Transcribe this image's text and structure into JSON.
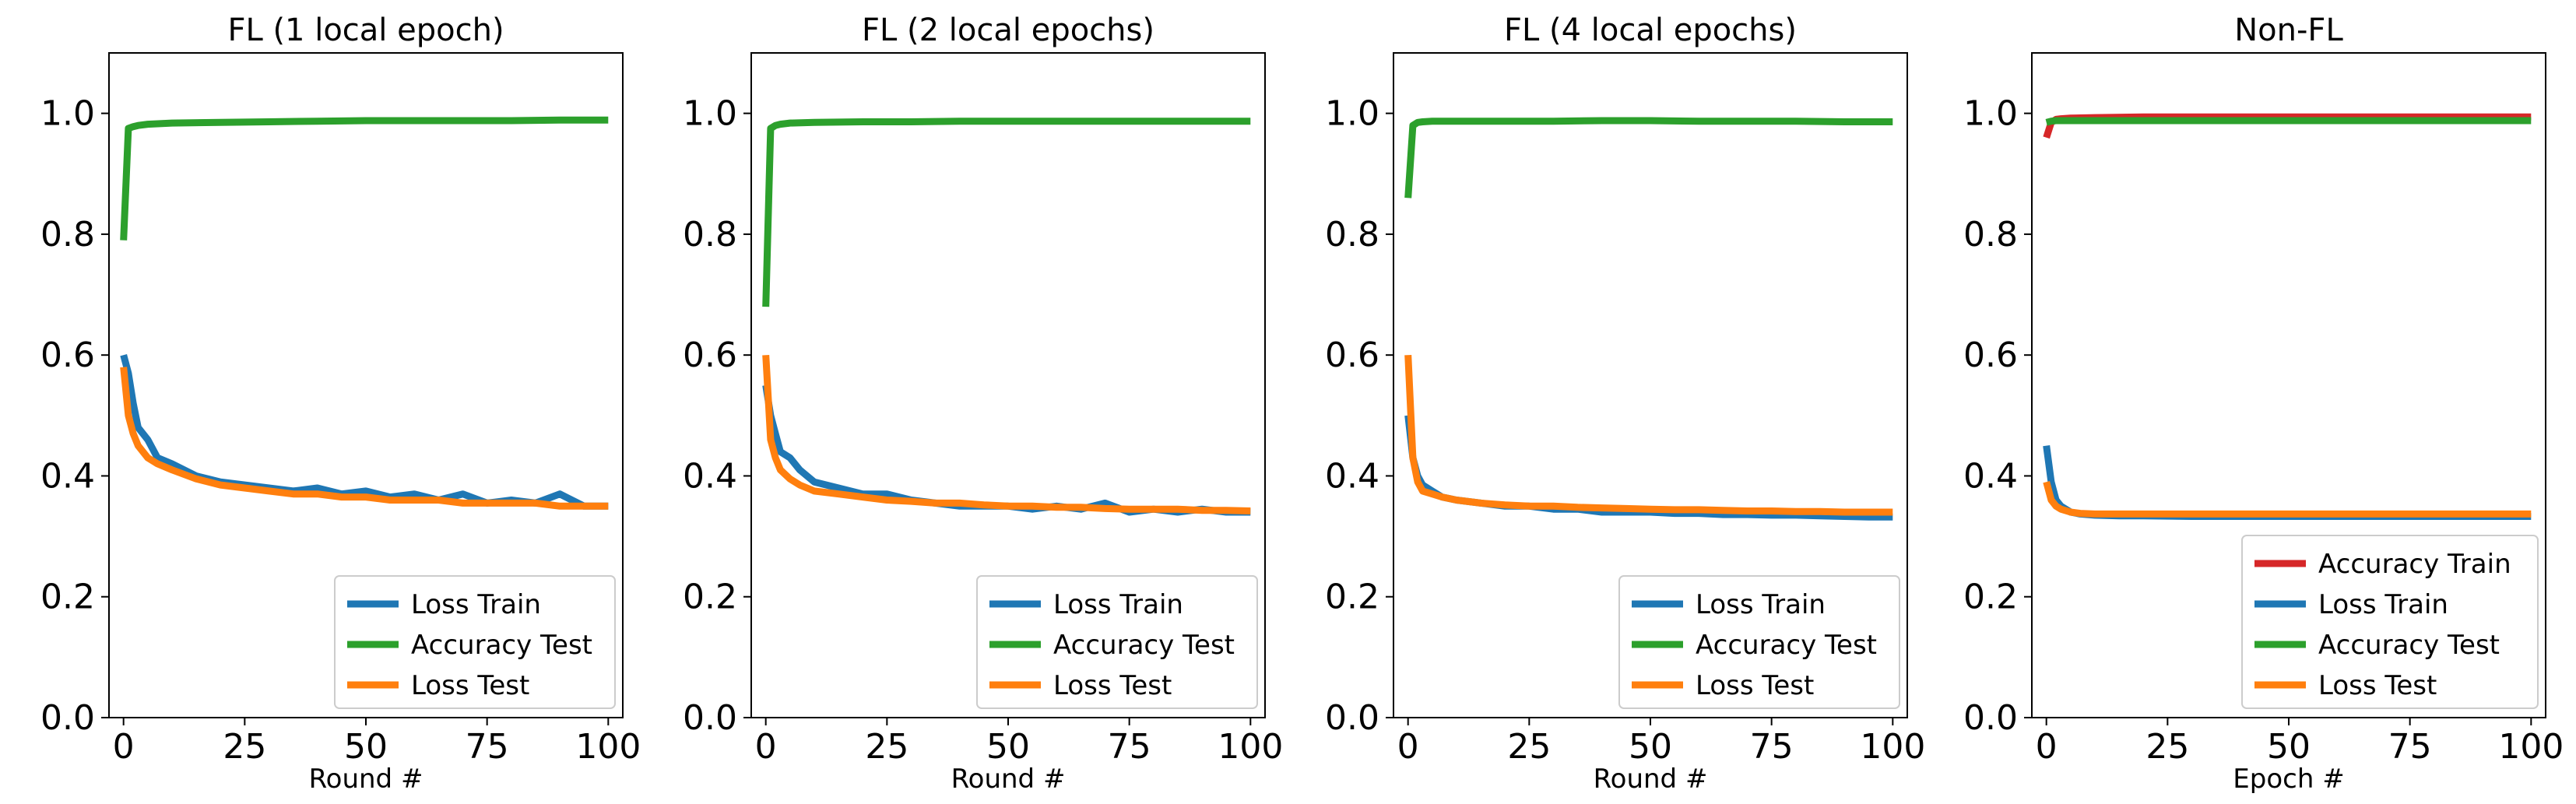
{
  "chart_data": [
    {
      "type": "line",
      "title": "FL (1 local epoch)",
      "xlabel": "Round #",
      "ylabel": "",
      "xlim": [
        -3,
        103
      ],
      "ylim": [
        0,
        1.1
      ],
      "xticks": [
        0,
        25,
        50,
        75,
        100
      ],
      "yticks": [
        0.0,
        0.2,
        0.4,
        0.6,
        0.8,
        1.0
      ],
      "xtick_labels": [
        "0",
        "25",
        "50",
        "75",
        "100"
      ],
      "ytick_labels": [
        "0.0",
        "0.2",
        "0.4",
        "0.6",
        "0.8",
        "1.0"
      ],
      "legend_position": "lower right",
      "series": [
        {
          "name": "Loss Train",
          "color": "#1f77b4",
          "x": [
            0,
            1,
            2,
            3,
            5,
            7,
            10,
            15,
            20,
            25,
            30,
            35,
            40,
            45,
            50,
            55,
            60,
            65,
            70,
            75,
            80,
            85,
            90,
            95,
            100
          ],
          "values": [
            0.6,
            0.57,
            0.52,
            0.48,
            0.46,
            0.43,
            0.42,
            0.4,
            0.39,
            0.385,
            0.38,
            0.375,
            0.38,
            0.37,
            0.375,
            0.365,
            0.37,
            0.36,
            0.37,
            0.355,
            0.36,
            0.355,
            0.37,
            0.35,
            0.35
          ]
        },
        {
          "name": "Accuracy Test",
          "color": "#2ca02c",
          "x": [
            0,
            1,
            2,
            3,
            5,
            10,
            20,
            30,
            40,
            50,
            60,
            70,
            80,
            90,
            100
          ],
          "values": [
            0.79,
            0.975,
            0.978,
            0.98,
            0.982,
            0.984,
            0.985,
            0.986,
            0.987,
            0.988,
            0.988,
            0.988,
            0.988,
            0.989,
            0.989
          ]
        },
        {
          "name": "Loss Test",
          "color": "#ff7f0e",
          "x": [
            0,
            1,
            2,
            3,
            5,
            7,
            10,
            15,
            20,
            25,
            30,
            35,
            40,
            45,
            50,
            55,
            60,
            65,
            70,
            75,
            80,
            85,
            90,
            95,
            100
          ],
          "values": [
            0.58,
            0.5,
            0.47,
            0.45,
            0.43,
            0.42,
            0.41,
            0.395,
            0.385,
            0.38,
            0.375,
            0.37,
            0.37,
            0.365,
            0.365,
            0.36,
            0.36,
            0.36,
            0.355,
            0.355,
            0.355,
            0.355,
            0.35,
            0.35,
            0.35
          ]
        }
      ]
    },
    {
      "type": "line",
      "title": "FL (2 local epochs)",
      "xlabel": "Round #",
      "ylabel": "",
      "xlim": [
        -3,
        103
      ],
      "ylim": [
        0,
        1.1
      ],
      "xticks": [
        0,
        25,
        50,
        75,
        100
      ],
      "yticks": [
        0.0,
        0.2,
        0.4,
        0.6,
        0.8,
        1.0
      ],
      "xtick_labels": [
        "0",
        "25",
        "50",
        "75",
        "100"
      ],
      "ytick_labels": [
        "0.0",
        "0.2",
        "0.4",
        "0.6",
        "0.8",
        "1.0"
      ],
      "legend_position": "lower right",
      "series": [
        {
          "name": "Loss Train",
          "color": "#1f77b4",
          "x": [
            0,
            1,
            2,
            3,
            5,
            7,
            10,
            15,
            20,
            25,
            30,
            35,
            40,
            45,
            50,
            55,
            60,
            65,
            70,
            75,
            80,
            85,
            90,
            95,
            100
          ],
          "values": [
            0.55,
            0.5,
            0.47,
            0.44,
            0.43,
            0.41,
            0.39,
            0.38,
            0.37,
            0.37,
            0.36,
            0.355,
            0.35,
            0.35,
            0.35,
            0.345,
            0.35,
            0.345,
            0.355,
            0.34,
            0.345,
            0.34,
            0.345,
            0.34,
            0.34
          ]
        },
        {
          "name": "Accuracy Test",
          "color": "#2ca02c",
          "x": [
            0,
            1,
            2,
            3,
            5,
            10,
            20,
            30,
            40,
            50,
            60,
            70,
            80,
            90,
            100
          ],
          "values": [
            0.68,
            0.975,
            0.98,
            0.982,
            0.984,
            0.985,
            0.986,
            0.986,
            0.987,
            0.987,
            0.987,
            0.987,
            0.987,
            0.987,
            0.987
          ]
        },
        {
          "name": "Loss Test",
          "color": "#ff7f0e",
          "x": [
            0,
            1,
            2,
            3,
            5,
            7,
            10,
            15,
            20,
            25,
            30,
            35,
            40,
            45,
            50,
            55,
            60,
            65,
            70,
            75,
            80,
            85,
            90,
            95,
            100
          ],
          "values": [
            0.6,
            0.46,
            0.43,
            0.41,
            0.395,
            0.385,
            0.375,
            0.37,
            0.365,
            0.36,
            0.358,
            0.355,
            0.355,
            0.352,
            0.35,
            0.35,
            0.348,
            0.348,
            0.346,
            0.345,
            0.345,
            0.345,
            0.343,
            0.343,
            0.342
          ]
        }
      ]
    },
    {
      "type": "line",
      "title": "FL (4 local epochs)",
      "xlabel": "Round #",
      "ylabel": "",
      "xlim": [
        -3,
        103
      ],
      "ylim": [
        0,
        1.1
      ],
      "xticks": [
        0,
        25,
        50,
        75,
        100
      ],
      "yticks": [
        0.0,
        0.2,
        0.4,
        0.6,
        0.8,
        1.0
      ],
      "xtick_labels": [
        "0",
        "25",
        "50",
        "75",
        "100"
      ],
      "ytick_labels": [
        "0.0",
        "0.2",
        "0.4",
        "0.6",
        "0.8",
        "1.0"
      ],
      "legend_position": "lower right",
      "series": [
        {
          "name": "Loss Train",
          "color": "#1f77b4",
          "x": [
            0,
            1,
            2,
            3,
            5,
            7,
            10,
            15,
            20,
            25,
            30,
            35,
            40,
            45,
            50,
            55,
            60,
            65,
            70,
            75,
            80,
            85,
            90,
            95,
            100
          ],
          "values": [
            0.5,
            0.43,
            0.4,
            0.385,
            0.375,
            0.365,
            0.36,
            0.355,
            0.35,
            0.35,
            0.345,
            0.345,
            0.34,
            0.34,
            0.34,
            0.338,
            0.338,
            0.336,
            0.336,
            0.335,
            0.335,
            0.334,
            0.333,
            0.332,
            0.332
          ]
        },
        {
          "name": "Accuracy Test",
          "color": "#2ca02c",
          "x": [
            0,
            1,
            2,
            3,
            5,
            10,
            20,
            30,
            40,
            50,
            60,
            70,
            80,
            90,
            100
          ],
          "values": [
            0.86,
            0.98,
            0.985,
            0.986,
            0.987,
            0.987,
            0.987,
            0.987,
            0.988,
            0.988,
            0.987,
            0.987,
            0.987,
            0.986,
            0.986
          ]
        },
        {
          "name": "Loss Test",
          "color": "#ff7f0e",
          "x": [
            0,
            1,
            2,
            3,
            5,
            7,
            10,
            15,
            20,
            25,
            30,
            35,
            40,
            45,
            50,
            55,
            60,
            65,
            70,
            75,
            80,
            85,
            90,
            95,
            100
          ],
          "values": [
            0.6,
            0.43,
            0.39,
            0.375,
            0.37,
            0.365,
            0.36,
            0.355,
            0.352,
            0.35,
            0.35,
            0.348,
            0.347,
            0.346,
            0.345,
            0.344,
            0.344,
            0.343,
            0.342,
            0.342,
            0.341,
            0.341,
            0.34,
            0.34,
            0.34
          ]
        }
      ]
    },
    {
      "type": "line",
      "title": "Non-FL",
      "xlabel": "Epoch #",
      "ylabel": "",
      "xlim": [
        -3,
        103
      ],
      "ylim": [
        0,
        1.1
      ],
      "xticks": [
        0,
        25,
        50,
        75,
        100
      ],
      "yticks": [
        0.0,
        0.2,
        0.4,
        0.6,
        0.8,
        1.0
      ],
      "xtick_labels": [
        "0",
        "25",
        "50",
        "75",
        "100"
      ],
      "ytick_labels": [
        "0.0",
        "0.2",
        "0.4",
        "0.6",
        "0.8",
        "1.0"
      ],
      "legend_position": "lower right",
      "series": [
        {
          "name": "Accuracy Train",
          "color": "#d62728",
          "x": [
            0,
            1,
            2,
            3,
            5,
            10,
            20,
            30,
            40,
            50,
            60,
            70,
            80,
            90,
            100
          ],
          "values": [
            0.96,
            0.985,
            0.99,
            0.991,
            0.992,
            0.993,
            0.994,
            0.994,
            0.994,
            0.994,
            0.994,
            0.994,
            0.994,
            0.994,
            0.994
          ]
        },
        {
          "name": "Loss Train",
          "color": "#1f77b4",
          "x": [
            0,
            1,
            2,
            3,
            5,
            7,
            10,
            15,
            20,
            30,
            40,
            50,
            60,
            70,
            80,
            90,
            100
          ],
          "values": [
            0.45,
            0.39,
            0.36,
            0.35,
            0.34,
            0.337,
            0.335,
            0.334,
            0.334,
            0.333,
            0.333,
            0.333,
            0.333,
            0.333,
            0.333,
            0.333,
            0.333
          ]
        },
        {
          "name": "Accuracy Test",
          "color": "#2ca02c",
          "x": [
            0,
            1,
            2,
            3,
            5,
            10,
            20,
            30,
            40,
            50,
            60,
            70,
            80,
            90,
            100
          ],
          "values": [
            0.985,
            0.987,
            0.988,
            0.988,
            0.988,
            0.988,
            0.988,
            0.988,
            0.988,
            0.988,
            0.988,
            0.988,
            0.988,
            0.988,
            0.988
          ]
        },
        {
          "name": "Loss Test",
          "color": "#ff7f0e",
          "x": [
            0,
            1,
            2,
            3,
            5,
            7,
            10,
            15,
            20,
            30,
            40,
            50,
            60,
            70,
            80,
            90,
            100
          ],
          "values": [
            0.39,
            0.36,
            0.35,
            0.345,
            0.34,
            0.338,
            0.337,
            0.337,
            0.337,
            0.337,
            0.337,
            0.337,
            0.337,
            0.337,
            0.337,
            0.337,
            0.337
          ]
        }
      ]
    }
  ]
}
